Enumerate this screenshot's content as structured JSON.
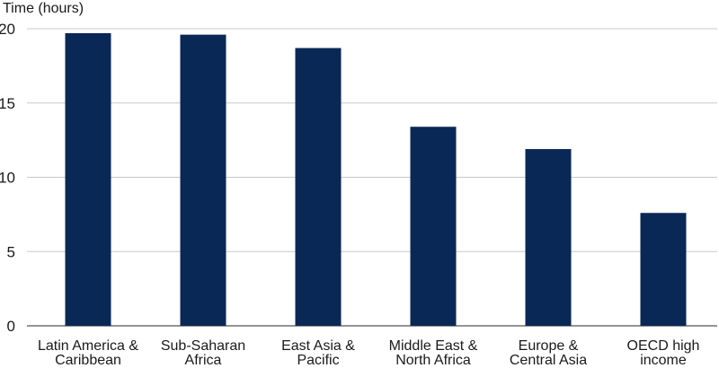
{
  "chart_data": {
    "type": "bar",
    "title": "",
    "xlabel": "",
    "ylabel": "Time (hours)",
    "categories": [
      [
        "Latin America &",
        "Caribbean"
      ],
      [
        "Sub-Saharan",
        "Africa"
      ],
      [
        "East Asia &",
        "Pacific"
      ],
      [
        "Middle East &",
        "North Africa"
      ],
      [
        "Europe &",
        "Central Asia"
      ],
      [
        "OECD high",
        "income"
      ]
    ],
    "values": [
      19.7,
      19.6,
      18.7,
      13.4,
      11.9,
      7.6
    ],
    "ylim": [
      0,
      20
    ],
    "yticks": [
      "0",
      "5",
      "10",
      "15",
      "20"
    ],
    "grid": true,
    "bar_color": "#0a2856"
  }
}
